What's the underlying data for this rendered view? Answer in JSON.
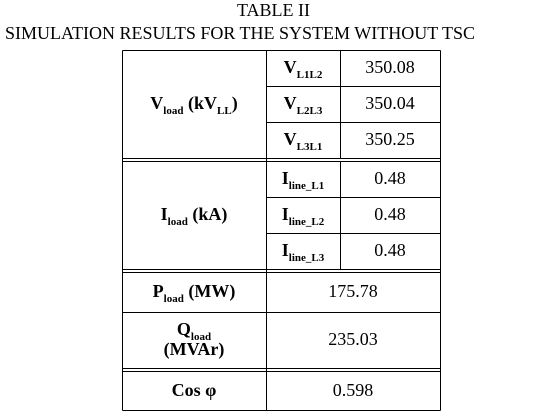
{
  "title": "TABLE II",
  "subtitle": "SIMULATION RESULTS FOR THE SYSTEM WITHOUT TSC",
  "table": {
    "groups": [
      {
        "label": [
          {
            "text": "V"
          },
          {
            "text": "load",
            "sub": true
          },
          {
            "text": " (kV"
          },
          {
            "text": "LL",
            "sub": true
          },
          {
            "text": ")"
          }
        ],
        "rows": [
          {
            "label": [
              {
                "text": "V"
              },
              {
                "text": "L1L2",
                "sub": true
              }
            ],
            "value": "350.08"
          },
          {
            "label": [
              {
                "text": "V"
              },
              {
                "text": "L2L3",
                "sub": true
              }
            ],
            "value": "350.04"
          },
          {
            "label": [
              {
                "text": "V"
              },
              {
                "text": "L3L1",
                "sub": true
              }
            ],
            "value": "350.25"
          }
        ]
      },
      {
        "label": [
          {
            "text": "I"
          },
          {
            "text": "load",
            "sub": true
          },
          {
            "text": " (kA)"
          }
        ],
        "rows": [
          {
            "label": [
              {
                "text": "I"
              },
              {
                "text": "line_L1",
                "sub": true
              }
            ],
            "value": "0.48"
          },
          {
            "label": [
              {
                "text": "I"
              },
              {
                "text": "line_L2",
                "sub": true
              }
            ],
            "value": "0.48"
          },
          {
            "label": [
              {
                "text": "I"
              },
              {
                "text": "line_L3",
                "sub": true
              }
            ],
            "value": "0.48"
          }
        ]
      }
    ],
    "rows": [
      {
        "label": [
          {
            "text": "P"
          },
          {
            "text": "load",
            "sub": true
          },
          {
            "text": " (MW)"
          }
        ],
        "value": "175.78"
      },
      {
        "label": [
          {
            "text": "Q"
          },
          {
            "text": "load",
            "sub": true
          },
          {
            "text": "(MVAr)",
            "newline": true
          }
        ],
        "value": "235.03"
      },
      {
        "label": [
          {
            "text": "Cos φ"
          }
        ],
        "value": "0.598"
      }
    ]
  }
}
